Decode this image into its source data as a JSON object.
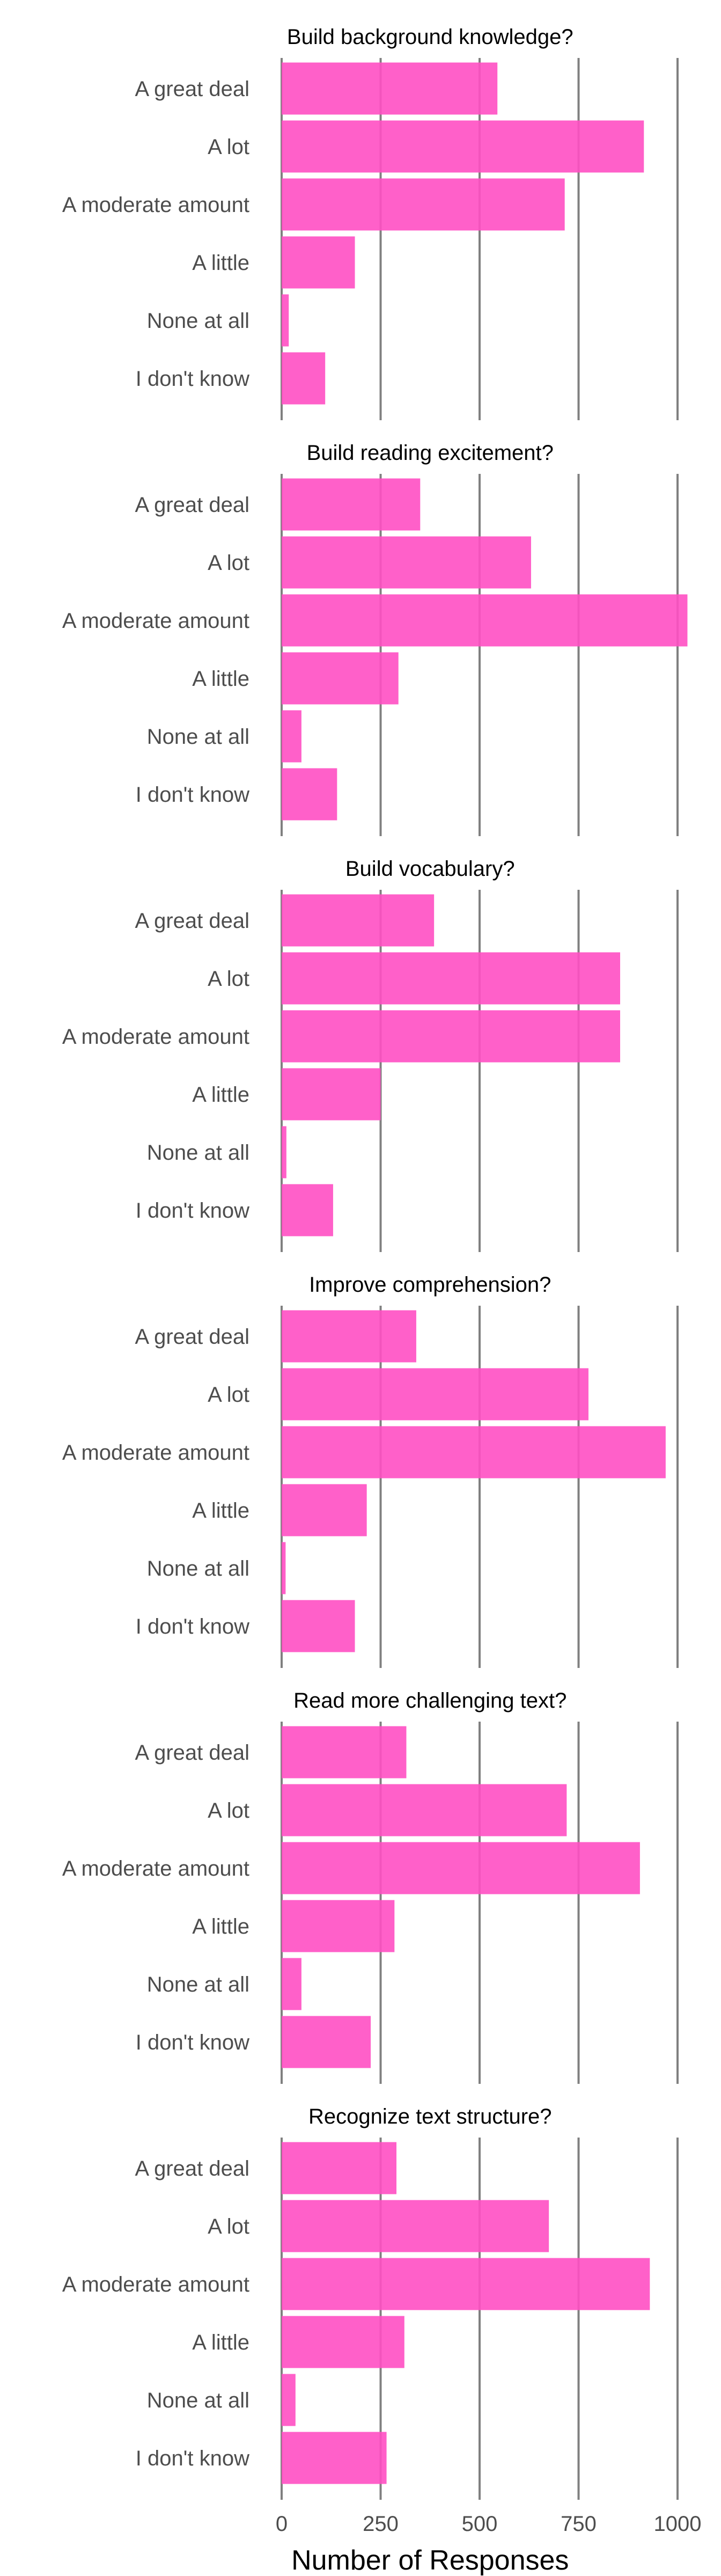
{
  "chart_data": {
    "type": "bar",
    "orientation": "horizontal",
    "xlabel": "Number of Responses",
    "x_ticks": [
      0,
      250,
      500,
      750,
      1000
    ],
    "xlim": [
      0,
      1050
    ],
    "grid": "vertical major gridlines",
    "bar_color": "#ff4fc3",
    "gridline_color": "#808080",
    "categories": [
      "A great deal",
      "A lot",
      "A moderate amount",
      "A little",
      "None at all",
      "I don't know"
    ],
    "facets": [
      {
        "title": "Build background knowledge?",
        "values": [
          545,
          915,
          715,
          185,
          18,
          110
        ]
      },
      {
        "title": "Build reading excitement?",
        "values": [
          350,
          630,
          1025,
          295,
          50,
          140
        ]
      },
      {
        "title": "Build vocabulary?",
        "values": [
          385,
          855,
          855,
          250,
          12,
          130
        ]
      },
      {
        "title": "Improve comprehension?",
        "values": [
          340,
          775,
          970,
          215,
          10,
          185
        ]
      },
      {
        "title": "Read more challenging text?",
        "values": [
          315,
          720,
          905,
          285,
          50,
          225
        ]
      },
      {
        "title": "Recognize text structure?",
        "values": [
          290,
          675,
          930,
          310,
          35,
          265
        ]
      }
    ]
  }
}
